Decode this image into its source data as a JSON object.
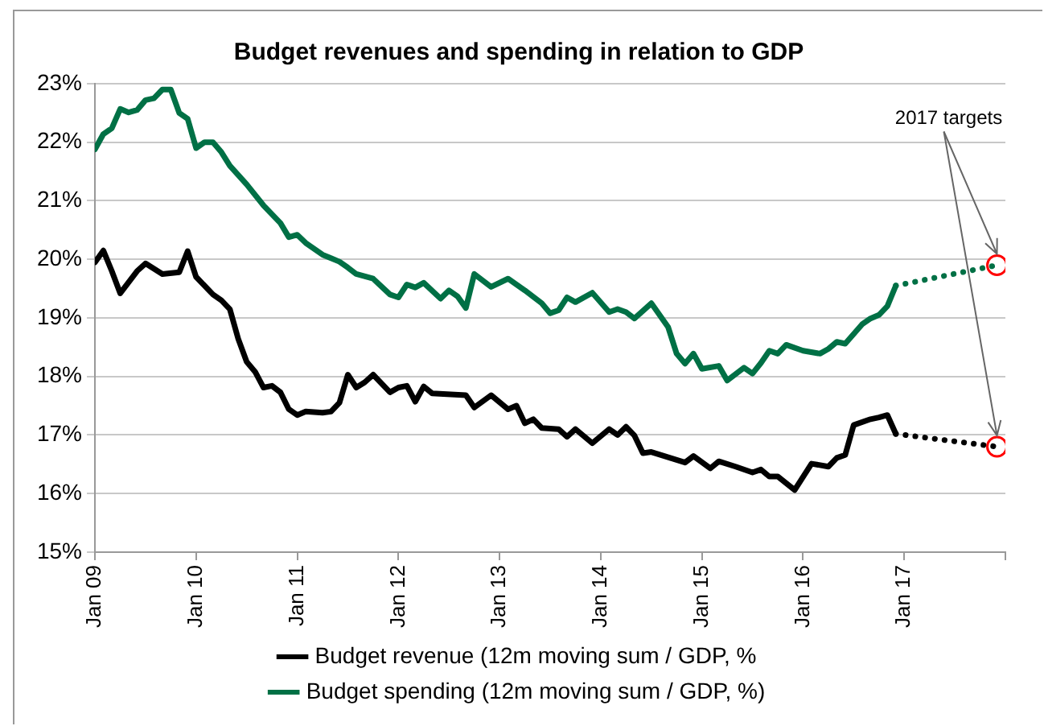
{
  "chart_data": {
    "type": "line",
    "title": "Budget revenues and spending in relation to GDP",
    "xlim": [
      "2009-01",
      "2018-01"
    ],
    "xticks": [
      {
        "value": "2009-01",
        "label": "Jan 09"
      },
      {
        "value": "2010-01",
        "label": "Jan 10"
      },
      {
        "value": "2011-01",
        "label": "Jan 11"
      },
      {
        "value": "2012-01",
        "label": "Jan 12"
      },
      {
        "value": "2013-01",
        "label": "Jan 13"
      },
      {
        "value": "2014-01",
        "label": "Jan 14"
      },
      {
        "value": "2015-01",
        "label": "Jan 15"
      },
      {
        "value": "2016-01",
        "label": "Jan 16"
      },
      {
        "value": "2017-01",
        "label": "Jan 17"
      },
      {
        "value": "2018-01",
        "label": null
      }
    ],
    "ylim": [
      15,
      23
    ],
    "yticks": [
      {
        "value": 15,
        "label": "15%"
      },
      {
        "value": 16,
        "label": "16%"
      },
      {
        "value": 17,
        "label": "17%"
      },
      {
        "value": 18,
        "label": "18%"
      },
      {
        "value": 19,
        "label": "19%"
      },
      {
        "value": 20,
        "label": "20%"
      },
      {
        "value": 21,
        "label": "21%"
      },
      {
        "value": 22,
        "label": "22%"
      },
      {
        "value": 23,
        "label": "23%"
      }
    ],
    "grid": "y",
    "legend": "bottom",
    "marker": "none",
    "line_style": "solid",
    "annotations": [
      {
        "text": "2017 targets",
        "x": "2017-12",
        "y": 19.9
      }
    ],
    "series": [
      {
        "name": "Budget revenue (12m moving sum / GDP, %",
        "color": "#000000",
        "x": [
          "2009-01",
          "2009-02",
          "2009-03",
          "2009-04",
          "2009-06",
          "2009-07",
          "2009-09",
          "2009-11",
          "2009-12",
          "2010-01",
          "2010-03",
          "2010-04",
          "2010-05",
          "2010-06",
          "2010-07",
          "2010-08",
          "2010-09",
          "2010-10",
          "2010-11",
          "2010-12",
          "2011-01",
          "2011-02",
          "2011-04",
          "2011-05",
          "2011-06",
          "2011-07",
          "2011-08",
          "2011-09",
          "2011-10",
          "2011-12",
          "2012-01",
          "2012-02",
          "2012-03",
          "2012-04",
          "2012-05",
          "2012-09",
          "2012-10",
          "2012-12",
          "2013-02",
          "2013-03",
          "2013-04",
          "2013-05",
          "2013-06",
          "2013-08",
          "2013-09",
          "2013-10",
          "2013-12",
          "2014-02",
          "2014-03",
          "2014-04",
          "2014-05",
          "2014-06",
          "2014-07",
          "2014-09",
          "2014-11",
          "2014-12",
          "2015-02",
          "2015-03",
          "2015-05",
          "2015-07",
          "2015-08",
          "2015-09",
          "2015-10",
          "2015-12",
          "2016-02",
          "2016-04",
          "2016-05",
          "2016-06",
          "2016-07",
          "2016-09",
          "2016-10",
          "2016-11",
          "2016-12"
        ],
        "values": [
          19.95,
          20.15,
          19.8,
          19.42,
          19.8,
          19.93,
          19.75,
          19.78,
          20.14,
          19.7,
          19.4,
          19.3,
          19.15,
          18.64,
          18.25,
          18.08,
          17.81,
          17.84,
          17.73,
          17.44,
          17.34,
          17.4,
          17.38,
          17.4,
          17.55,
          18.03,
          17.81,
          17.9,
          18.03,
          17.73,
          17.81,
          17.84,
          17.57,
          17.83,
          17.71,
          17.68,
          17.47,
          17.68,
          17.44,
          17.5,
          17.2,
          17.27,
          17.12,
          17.1,
          16.97,
          17.1,
          16.86,
          17.1,
          17.0,
          17.14,
          16.99,
          16.69,
          16.71,
          16.62,
          16.53,
          16.64,
          16.43,
          16.55,
          16.46,
          16.36,
          16.41,
          16.29,
          16.29,
          16.06,
          16.51,
          16.46,
          16.61,
          16.66,
          17.17,
          17.27,
          17.3,
          17.34,
          17.02
        ]
      },
      {
        "name": "Budget spending (12m moving sum / GDP, %)",
        "color": "#007045",
        "x": [
          "2009-01",
          "2009-02",
          "2009-03",
          "2009-04",
          "2009-05",
          "2009-06",
          "2009-07",
          "2009-08",
          "2009-09",
          "2009-10",
          "2009-11",
          "2009-12",
          "2010-01",
          "2010-02",
          "2010-03",
          "2010-04",
          "2010-05",
          "2010-07",
          "2010-09",
          "2010-11",
          "2010-12",
          "2011-01",
          "2011-02",
          "2011-04",
          "2011-05",
          "2011-06",
          "2011-07",
          "2011-08",
          "2011-10",
          "2011-12",
          "2012-01",
          "2012-02",
          "2012-03",
          "2012-04",
          "2012-06",
          "2012-07",
          "2012-08",
          "2012-09",
          "2012-10",
          "2012-12",
          "2013-02",
          "2013-04",
          "2013-06",
          "2013-07",
          "2013-08",
          "2013-09",
          "2013-10",
          "2013-12",
          "2014-02",
          "2014-03",
          "2014-04",
          "2014-05",
          "2014-07",
          "2014-09",
          "2014-10",
          "2014-11",
          "2014-12",
          "2015-01",
          "2015-03",
          "2015-04",
          "2015-06",
          "2015-07",
          "2015-08",
          "2015-09",
          "2015-10",
          "2015-11",
          "2016-01",
          "2016-03",
          "2016-04",
          "2016-05",
          "2016-06",
          "2016-08",
          "2016-09",
          "2016-10",
          "2016-11",
          "2016-12"
        ],
        "values": [
          21.88,
          22.14,
          22.24,
          22.57,
          22.51,
          22.55,
          22.72,
          22.75,
          22.9,
          22.9,
          22.5,
          22.4,
          21.9,
          22.0,
          22.0,
          21.83,
          21.6,
          21.28,
          20.92,
          20.62,
          20.38,
          20.42,
          20.28,
          20.08,
          20.02,
          19.96,
          19.86,
          19.75,
          19.67,
          19.4,
          19.35,
          19.57,
          19.52,
          19.6,
          19.33,
          19.47,
          19.37,
          19.17,
          19.75,
          19.53,
          19.67,
          19.47,
          19.25,
          19.08,
          19.13,
          19.35,
          19.27,
          19.43,
          19.1,
          19.15,
          19.1,
          18.99,
          19.25,
          18.84,
          18.39,
          18.22,
          18.39,
          18.13,
          18.18,
          17.93,
          18.15,
          18.05,
          18.23,
          18.44,
          18.39,
          18.54,
          18.44,
          18.39,
          18.47,
          18.59,
          18.56,
          18.89,
          18.99,
          19.05,
          19.2,
          19.55
        ]
      },
      {
        "color": "#000000",
        "line_style": "dotted",
        "x": [
          "2016-12",
          "2017-12"
        ],
        "values": [
          17.02,
          16.8
        ]
      },
      {
        "color": "#007045",
        "line_style": "dotted",
        "x": [
          "2016-12",
          "2017-12"
        ],
        "values": [
          19.55,
          19.9
        ]
      },
      {
        "type": "scatter",
        "marker": "circle",
        "color": "#ff0000",
        "x": [
          "2017-12",
          "2017-12"
        ],
        "values": [
          19.9,
          16.8
        ]
      }
    ]
  }
}
